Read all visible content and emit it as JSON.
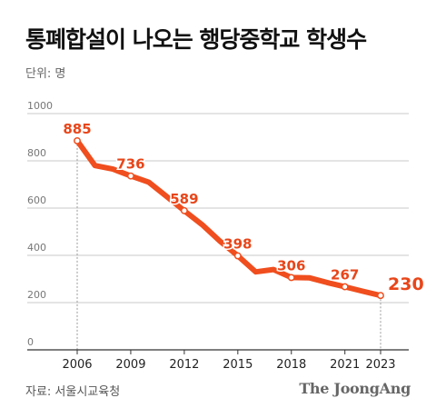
{
  "title": "통폐합설이 나오는 행당중학교 학생수",
  "unit_label": "단위: 명",
  "source": "자료: 서울시교육청",
  "logo": "The JoongAng",
  "colors": {
    "line": "#f04e1e",
    "label": "#e8461a",
    "grid": "#c8c8c8",
    "axis": "#333333"
  },
  "chart_data": {
    "type": "line",
    "title": "통폐합설이 나오는 행당중학교 학생수",
    "ylabel": "단위: 명",
    "ylim": [
      0,
      1000
    ],
    "yticks": [
      0,
      200,
      400,
      600,
      800,
      1000
    ],
    "xlim": [
      2006,
      2023
    ],
    "xticks": [
      2006,
      2009,
      2012,
      2015,
      2018,
      2021,
      2023
    ],
    "grid": true,
    "series": [
      {
        "x": [
          2006,
          2007,
          2008,
          2009,
          2010,
          2011,
          2012,
          2013,
          2014,
          2015,
          2016,
          2017,
          2018,
          2019,
          2020,
          2021,
          2022,
          2023
        ],
        "values": [
          885,
          780,
          765,
          736,
          710,
          650,
          589,
          530,
          460,
          398,
          330,
          340,
          306,
          305,
          285,
          267,
          248,
          230
        ]
      }
    ],
    "labeled_points": [
      {
        "x": 2006,
        "value": 885,
        "label": "885"
      },
      {
        "x": 2009,
        "value": 736,
        "label": "736"
      },
      {
        "x": 2012,
        "value": 589,
        "label": "589"
      },
      {
        "x": 2015,
        "value": 398,
        "label": "398"
      },
      {
        "x": 2018,
        "value": 306,
        "label": "306"
      },
      {
        "x": 2021,
        "value": 267,
        "label": "267"
      },
      {
        "x": 2023,
        "value": 230,
        "label": "230"
      }
    ]
  }
}
